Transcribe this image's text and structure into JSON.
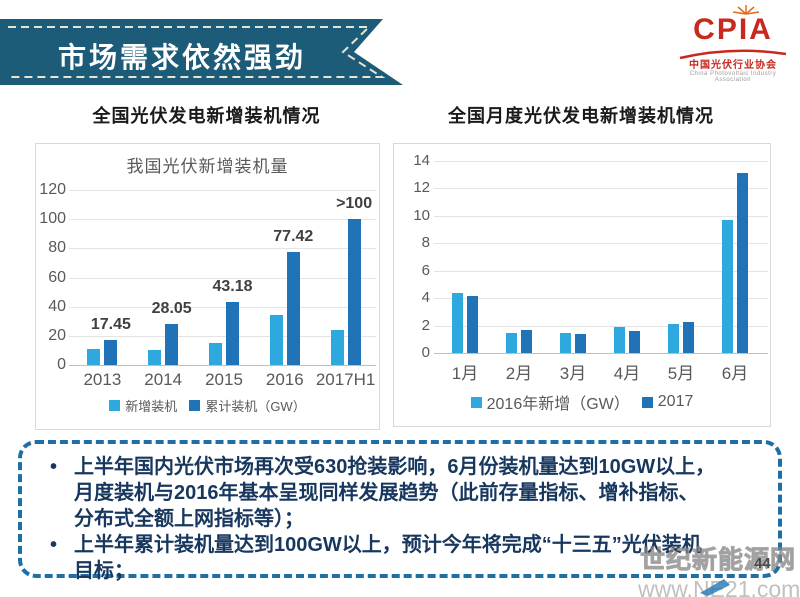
{
  "banner": {
    "title": "市场需求依然强劲"
  },
  "logo": {
    "name": "CPIA",
    "cn": "中国光伏行业协会",
    "en": "China Photovoltaic Industry Association"
  },
  "titles": {
    "left": "全国光伏发电新增装机情况",
    "right": "全国月度光伏发电新增装机情况"
  },
  "colors": {
    "banner": "#1d5c78",
    "banner_dash": "#e9e4cf",
    "light_blue": "#2ea9e0",
    "dark_blue": "#2173b8",
    "box_border": "#1e6fa6",
    "box_text": "#17375e",
    "logo_red": "#c8281e"
  },
  "chart_data": [
    {
      "type": "bar",
      "title": "我国光伏新增装机量",
      "categories": [
        "2013",
        "2014",
        "2015",
        "2016",
        "2017H1"
      ],
      "series": [
        {
          "name": "新增装机",
          "color_key": "light_blue",
          "values": [
            11,
            10.6,
            15.1,
            34.5,
            24
          ]
        },
        {
          "name": "累计装机（GW）",
          "color_key": "dark_blue",
          "values": [
            17.45,
            28.05,
            43.18,
            77.42,
            100
          ],
          "labels": [
            "17.45",
            "28.05",
            "43.18",
            "77.42",
            ">100"
          ]
        }
      ],
      "xlabel": "",
      "ylabel": "",
      "ylim": [
        0,
        120
      ],
      "yticks": [
        0,
        20,
        40,
        60,
        80,
        100,
        120
      ],
      "grid": true,
      "legend_position": "bottom"
    },
    {
      "type": "bar",
      "title": "",
      "categories": [
        "1月",
        "2月",
        "3月",
        "4月",
        "5月",
        "6月"
      ],
      "series": [
        {
          "name": "2016年新增（GW）",
          "color_key": "light_blue",
          "values": [
            4.35,
            1.45,
            1.45,
            1.9,
            2.1,
            9.7
          ]
        },
        {
          "name": "2017",
          "color_key": "dark_blue",
          "values": [
            4.15,
            1.7,
            1.4,
            1.6,
            2.25,
            13.15
          ]
        }
      ],
      "xlabel": "",
      "ylabel": "",
      "ylim": [
        0,
        14
      ],
      "yticks": [
        0,
        2,
        4,
        6,
        8,
        10,
        12,
        14
      ],
      "grid": true,
      "legend_position": "bottom"
    }
  ],
  "notes": {
    "bullets": [
      "上半年国内光伏市场再次受630抢装影响，6月份装机量达到10GW以上，月度装机与2016年基本呈现同样发展趋势（此前存量指标、增补指标、分布式全额上网指标等）；",
      "上半年累计装机量达到100GW以上，预计今年将完成“十三五”光伏装机目标；"
    ]
  },
  "watermark": {
    "line1": "世纪新能源网",
    "line2": "www.NE21.com"
  },
  "page_number": "44"
}
